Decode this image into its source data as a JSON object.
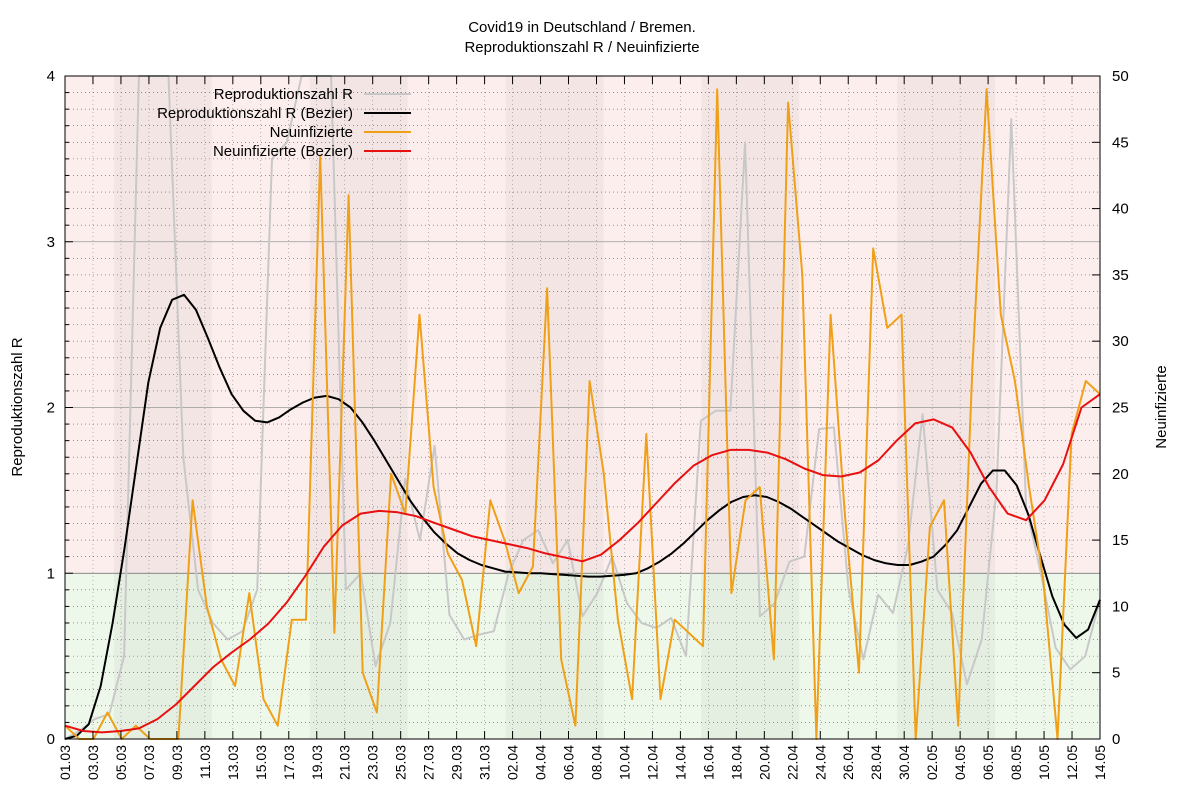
{
  "chart_data": {
    "type": "line",
    "title": "Covid19 in Deutschland / Bremen.",
    "subtitle": "Reproduktionszahl R / Neuinfizierte",
    "ylabel": "Reproduktionszahl R",
    "y2label": "Neuinfizierte",
    "ylim": [
      0,
      4
    ],
    "y2lim": [
      0,
      50
    ],
    "yticks": [
      "0",
      "1",
      "2",
      "3",
      "4"
    ],
    "y2ticks": [
      "0",
      "5",
      "10",
      "15",
      "20",
      "25",
      "30",
      "35",
      "40",
      "45",
      "50"
    ],
    "grid": "dotted",
    "threshold": 1,
    "background": {
      "above": "#fdeeee",
      "below": "#eef8ea"
    },
    "legend_position": "top-left",
    "x_labels": [
      "01.03",
      "03.03",
      "05.03",
      "07.03",
      "09.03",
      "11.03",
      "13.03",
      "15.03",
      "17.03",
      "19.03",
      "21.03",
      "23.03",
      "25.03",
      "27.03",
      "29.03",
      "31.03",
      "02.04",
      "04.04",
      "06.04",
      "08.04",
      "10.04",
      "12.04",
      "14.04",
      "16.04",
      "18.04",
      "20.04",
      "22.04",
      "24.04",
      "26.04",
      "28.04",
      "30.04",
      "02.05",
      "04.05",
      "06.05",
      "08.05",
      "10.05",
      "12.05",
      "14.05"
    ],
    "series": [
      {
        "name": "Reproduktionszahl R",
        "axis": "y",
        "color": "#c8c8c8",
        "width": 2,
        "values": [
          0.0,
          0.05,
          0.12,
          0.15,
          0.5,
          4.2,
          5.0,
          5.0,
          1.7,
          0.9,
          0.7,
          0.6,
          0.65,
          0.9,
          3.5,
          3.6,
          4.0,
          4.5,
          4.8,
          0.9,
          1.0,
          0.44,
          0.7,
          1.57,
          1.2,
          1.77,
          0.75,
          0.6,
          0.63,
          0.65,
          1.0,
          1.2,
          1.26,
          1.06,
          1.2,
          0.74,
          0.88,
          1.1,
          0.82,
          0.7,
          0.67,
          0.73,
          0.5,
          1.92,
          1.98,
          1.98,
          3.6,
          0.74,
          0.82,
          1.07,
          1.1,
          1.87,
          1.88,
          0.9,
          0.48,
          0.87,
          0.76,
          1.16,
          1.96,
          0.9,
          0.76,
          0.33,
          0.6,
          1.5,
          3.74,
          1.4,
          1.0,
          0.55,
          0.42,
          0.5,
          0.84
        ]
      },
      {
        "name": "Reproduktionszahl R (Bezier)",
        "axis": "y",
        "color": "#000000",
        "width": 2,
        "values": [
          0.0,
          0.02,
          0.09,
          0.32,
          0.7,
          1.15,
          1.65,
          2.15,
          2.48,
          2.65,
          2.68,
          2.59,
          2.42,
          2.24,
          2.08,
          1.98,
          1.92,
          1.91,
          1.94,
          1.99,
          2.03,
          2.06,
          2.07,
          2.05,
          2.0,
          1.91,
          1.8,
          1.68,
          1.56,
          1.44,
          1.34,
          1.25,
          1.18,
          1.12,
          1.08,
          1.05,
          1.03,
          1.01,
          1.005,
          1.0,
          1.0,
          0.995,
          0.99,
          0.985,
          0.98,
          0.98,
          0.985,
          0.99,
          1.0,
          1.03,
          1.07,
          1.12,
          1.18,
          1.25,
          1.32,
          1.38,
          1.43,
          1.46,
          1.47,
          1.46,
          1.43,
          1.39,
          1.34,
          1.29,
          1.24,
          1.19,
          1.15,
          1.11,
          1.08,
          1.06,
          1.05,
          1.05,
          1.07,
          1.1,
          1.17,
          1.26,
          1.4,
          1.54,
          1.62,
          1.62,
          1.53,
          1.35,
          1.1,
          0.86,
          0.69,
          0.61,
          0.66,
          0.84
        ]
      },
      {
        "name": "Neuinfizierte",
        "axis": "y2",
        "color": "#f0a018",
        "width": 2,
        "values": [
          1,
          0,
          0,
          2,
          0,
          1,
          0,
          0,
          0,
          18,
          10,
          6,
          4,
          11,
          3,
          1,
          9,
          9,
          44,
          8,
          41,
          5,
          2,
          20,
          17,
          32,
          19,
          14,
          12,
          7,
          18,
          15,
          11,
          13,
          34,
          6,
          1,
          27,
          20,
          9,
          3,
          23,
          3,
          9,
          8,
          7,
          49,
          11,
          18,
          19,
          6,
          48,
          35,
          0,
          32,
          17,
          5,
          37,
          31,
          32,
          0,
          16,
          18,
          1,
          28,
          49,
          32,
          27,
          19,
          12,
          0,
          23,
          27,
          26
        ]
      },
      {
        "name": "Neuinfizierte (Bezier)",
        "axis": "y2",
        "color": "#e81010",
        "width": 2,
        "values": [
          1.0,
          0.6,
          0.5,
          0.6,
          0.8,
          1.5,
          2.6,
          4.0,
          5.4,
          6.5,
          7.5,
          8.7,
          10.3,
          12.3,
          14.5,
          16.1,
          17.0,
          17.2,
          17.1,
          16.8,
          16.3,
          15.8,
          15.3,
          15.0,
          14.7,
          14.4,
          14.0,
          13.7,
          13.4,
          13.9,
          15.0,
          16.3,
          17.8,
          19.3,
          20.6,
          21.4,
          21.8,
          21.8,
          21.6,
          21.1,
          20.4,
          19.9,
          19.8,
          20.1,
          21.0,
          22.5,
          23.8,
          24.1,
          23.5,
          21.6,
          19.0,
          17.0,
          16.5,
          18.0,
          20.7,
          25.0,
          26.0
        ]
      }
    ]
  }
}
